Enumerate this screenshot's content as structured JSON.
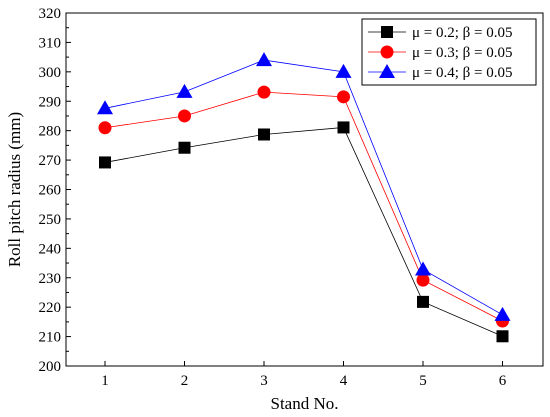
{
  "chart_data": {
    "type": "line",
    "xlabel": "Stand No.",
    "ylabel": "Roll pitch radius (mm)",
    "categories": [
      "1",
      "2",
      "3",
      "4",
      "5",
      "6"
    ],
    "ylim": [
      200,
      320
    ],
    "yticks": [
      "200",
      "210",
      "220",
      "230",
      "240",
      "250",
      "260",
      "270",
      "280",
      "290",
      "300",
      "310",
      "320"
    ],
    "grid": false,
    "legend_position": "top-right",
    "series": [
      {
        "name": "μ = 0.2; β = 0.05",
        "color": "#000000",
        "marker": "square",
        "values": [
          269.2,
          274.2,
          278.7,
          281.1,
          221.8,
          210.1
        ]
      },
      {
        "name": "μ = 0.3; β = 0.05",
        "color": "#ff0000",
        "marker": "circle",
        "values": [
          281.0,
          285.0,
          293.1,
          291.5,
          229.2,
          215.3
        ]
      },
      {
        "name": "μ = 0.4; β = 0.05",
        "color": "#0000ff",
        "marker": "triangle",
        "values": [
          287.6,
          293.2,
          304.0,
          300.0,
          232.8,
          217.4
        ]
      }
    ]
  }
}
